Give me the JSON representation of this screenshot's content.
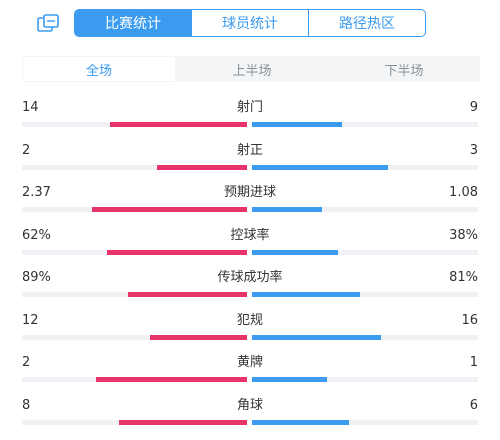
{
  "colors": {
    "home": "#e8336b",
    "away": "#3a9bf0",
    "accent": "#3a9bf0"
  },
  "header": {
    "share_icon": "share-icon",
    "main_tabs": [
      "比赛统计",
      "球员统计",
      "路径热区"
    ],
    "active_main_tab": 0
  },
  "sub_tabs": {
    "labels": [
      "全场",
      "上半场",
      "下半场"
    ],
    "active": 0
  },
  "stats": [
    {
      "name": "射门",
      "home": "14",
      "away": "9",
      "home_bar": 0.61,
      "away_bar": 0.4
    },
    {
      "name": "射正",
      "home": "2",
      "away": "3",
      "home_bar": 0.4,
      "away_bar": 0.6
    },
    {
      "name": "预期进球",
      "home": "2.37",
      "away": "1.08",
      "home_bar": 0.69,
      "away_bar": 0.31
    },
    {
      "name": "控球率",
      "home": "62%",
      "away": "38%",
      "home_bar": 0.62,
      "away_bar": 0.38
    },
    {
      "name": "传球成功率",
      "home": "89%",
      "away": "81%",
      "home_bar": 0.53,
      "away_bar": 0.48
    },
    {
      "name": "犯规",
      "home": "12",
      "away": "16",
      "home_bar": 0.43,
      "away_bar": 0.57
    },
    {
      "name": "黄牌",
      "home": "2",
      "away": "1",
      "home_bar": 0.67,
      "away_bar": 0.33
    },
    {
      "name": "角球",
      "home": "8",
      "away": "6",
      "home_bar": 0.57,
      "away_bar": 0.43
    }
  ]
}
